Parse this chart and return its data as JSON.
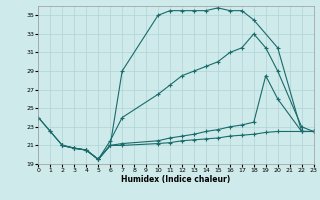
{
  "xlabel": "Humidex (Indice chaleur)",
  "xlim": [
    0,
    23
  ],
  "ylim": [
    19,
    36
  ],
  "xticks": [
    0,
    1,
    2,
    3,
    4,
    5,
    6,
    7,
    8,
    9,
    10,
    11,
    12,
    13,
    14,
    15,
    16,
    17,
    18,
    19,
    20,
    21,
    22,
    23
  ],
  "yticks": [
    19,
    21,
    23,
    25,
    27,
    29,
    31,
    33,
    35
  ],
  "bg_color": "#ceeaea",
  "grid_color": "#b0d4d4",
  "line_color": "#1a6b6b",
  "line1_x": [
    0,
    1,
    2,
    3,
    4,
    5,
    6,
    7,
    10,
    11,
    12,
    13,
    14,
    15,
    16,
    17,
    18,
    20,
    22,
    23
  ],
  "line1_y": [
    24.0,
    22.5,
    21.0,
    20.7,
    20.5,
    19.5,
    21.0,
    29.0,
    35.0,
    35.5,
    35.5,
    35.5,
    35.5,
    35.8,
    35.5,
    35.5,
    34.5,
    31.5,
    22.5,
    22.5
  ],
  "line2_x": [
    0,
    1,
    2,
    3,
    4,
    5,
    6,
    7,
    10,
    11,
    12,
    13,
    14,
    15,
    16,
    17,
    18,
    19,
    20,
    22,
    23
  ],
  "line2_y": [
    24.0,
    22.5,
    21.0,
    20.7,
    20.5,
    19.5,
    21.5,
    24.0,
    26.5,
    27.5,
    28.5,
    29.0,
    29.5,
    30.0,
    31.0,
    31.5,
    33.0,
    31.5,
    29.0,
    23.0,
    22.5
  ],
  "line3_x": [
    2,
    3,
    4,
    5,
    6,
    7,
    10,
    11,
    12,
    13,
    14,
    15,
    16,
    17,
    18,
    19,
    20,
    22,
    23
  ],
  "line3_y": [
    21.0,
    20.7,
    20.5,
    19.5,
    21.0,
    21.2,
    21.5,
    21.8,
    22.0,
    22.2,
    22.5,
    22.7,
    23.0,
    23.2,
    23.5,
    28.5,
    26.0,
    22.5,
    22.5
  ],
  "line4_x": [
    2,
    3,
    4,
    5,
    6,
    7,
    10,
    11,
    12,
    13,
    14,
    15,
    16,
    17,
    18,
    19,
    20,
    22,
    23
  ],
  "line4_y": [
    21.0,
    20.7,
    20.5,
    19.5,
    21.0,
    21.0,
    21.2,
    21.3,
    21.5,
    21.6,
    21.7,
    21.8,
    22.0,
    22.1,
    22.2,
    22.4,
    22.5,
    22.5,
    22.5
  ]
}
